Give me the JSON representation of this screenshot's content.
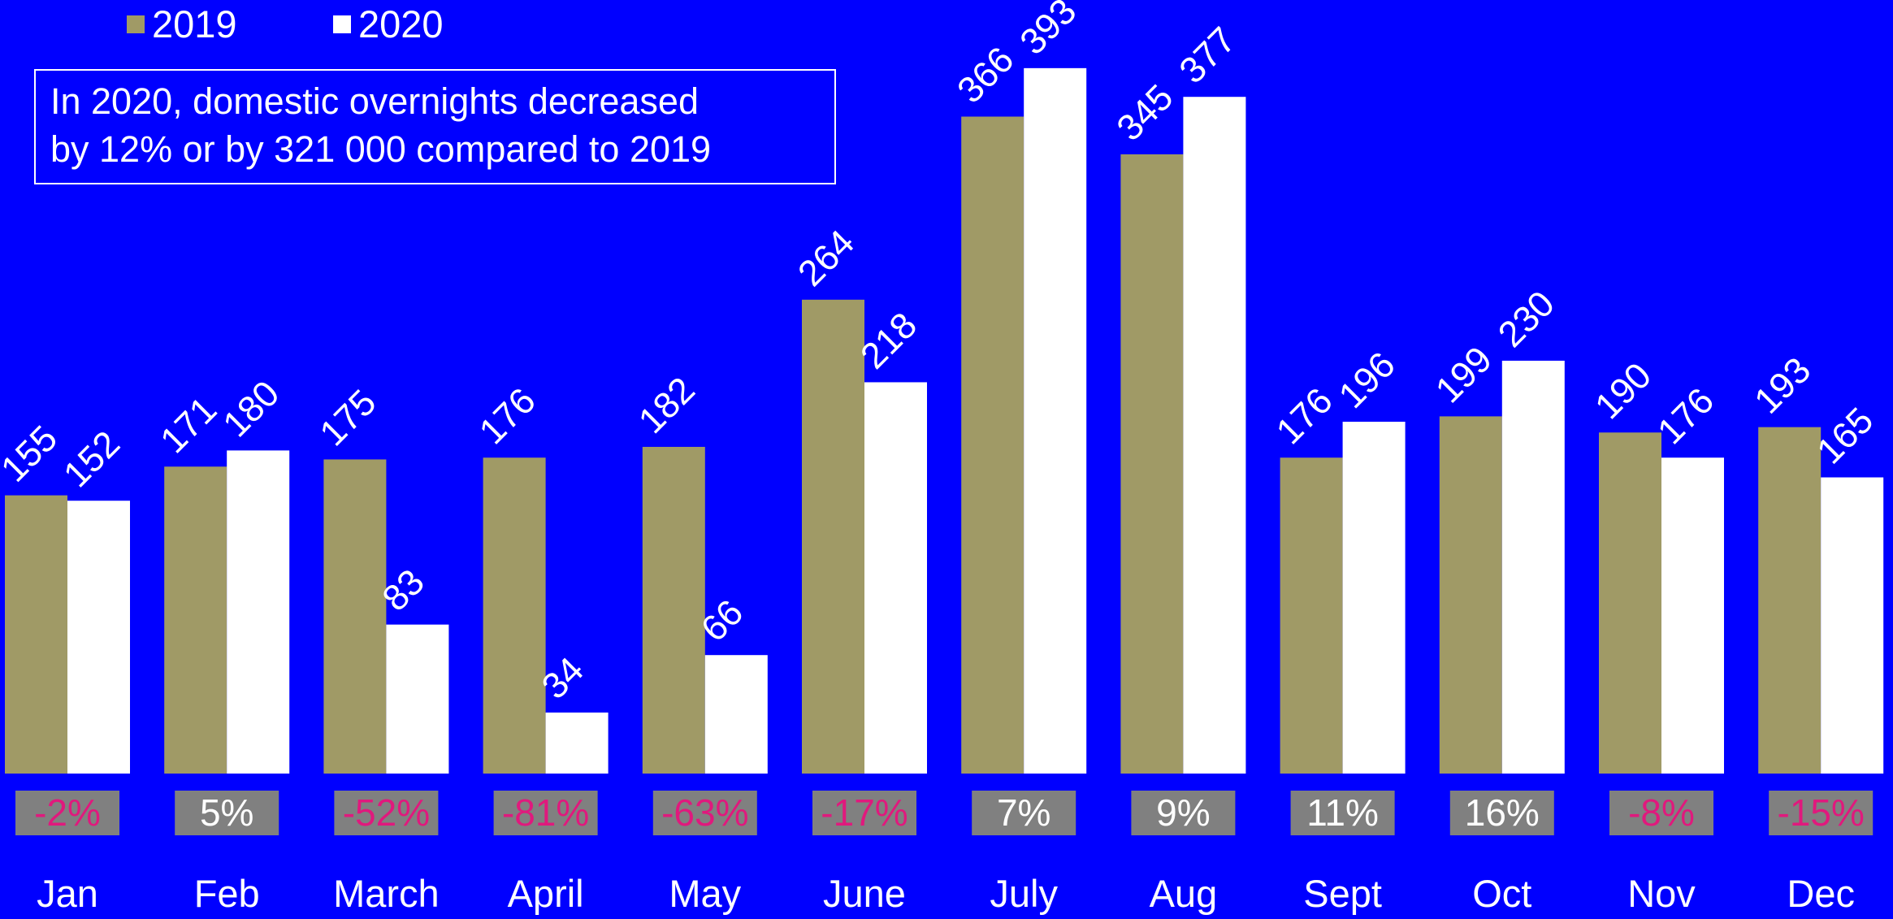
{
  "chart_data": {
    "type": "bar",
    "annotation": [
      "In 2020, domestic overnights decreased",
      "by 12% or by 321 000 compared to 2019"
    ],
    "categories": [
      "Jan",
      "Feb",
      "March",
      "April",
      "May",
      "June",
      "July",
      "Aug",
      "Sept",
      "Oct",
      "Nov",
      "Dec"
    ],
    "series": [
      {
        "name": "2019",
        "color": "#a09a66",
        "values": [
          155,
          171,
          175,
          176,
          182,
          264,
          366,
          345,
          176,
          199,
          190,
          193
        ]
      },
      {
        "name": "2020",
        "color": "#ffffff",
        "values": [
          152,
          180,
          83,
          34,
          66,
          218,
          393,
          377,
          196,
          230,
          176,
          165
        ]
      }
    ],
    "changes": {
      "values": [
        -2,
        5,
        -52,
        -81,
        -63,
        -17,
        7,
        9,
        11,
        16,
        -8,
        -15
      ],
      "value_labels": [
        "-2%",
        "5%",
        "-52%",
        "-81%",
        "-63%",
        "-17%",
        "7%",
        "9%",
        "11%",
        "16%",
        "-8%",
        "-15%"
      ],
      "box_color": "#808080",
      "negative_color": "#e0197d",
      "positive_color": "#ffffff"
    },
    "background": "#0000ff"
  }
}
